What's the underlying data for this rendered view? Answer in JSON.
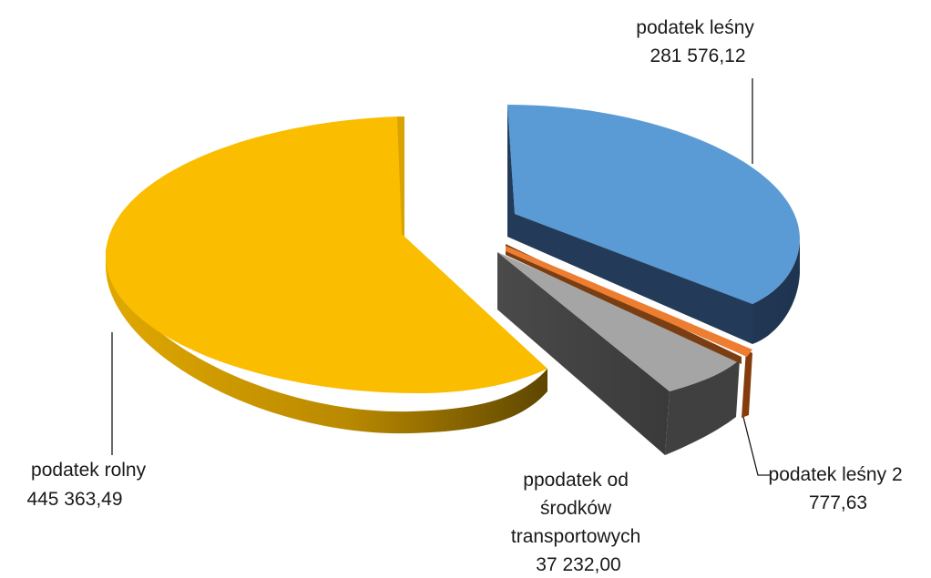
{
  "chart_data": {
    "type": "pie",
    "style": "3d-exploded",
    "title": "",
    "slices": [
      {
        "label": "podatek leśny",
        "value_text": "281 576,12",
        "value": 281576.12,
        "color": "#5b9bd5",
        "side_color": "#223a57"
      },
      {
        "label": "podatek leśny 2",
        "value_text": "777,63",
        "value": 777.63,
        "color": "#ed7d31",
        "side_color": "#7a3e12"
      },
      {
        "label": "ppodatek od środków transportowych",
        "value_text": "37 232,00",
        "value": 37232.0,
        "color": "#a5a5a5",
        "side_color": "#404040"
      },
      {
        "label": "podatek rolny",
        "value_text": "445 363,49",
        "value": 445363.49,
        "color": "#ffc000",
        "side_color": "#c18f00"
      }
    ],
    "labels_display": [
      {
        "lines": [
          "podatek leśny",
          "281 576,12"
        ]
      },
      {
        "lines": [
          "podatek leśny 2",
          "777,63"
        ]
      },
      {
        "lines": [
          "ppodatek od",
          "środków",
          "transportowych",
          "37 232,00"
        ]
      },
      {
        "lines": [
          "podatek rolny",
          "445 363,49"
        ]
      }
    ],
    "legend": "none"
  }
}
